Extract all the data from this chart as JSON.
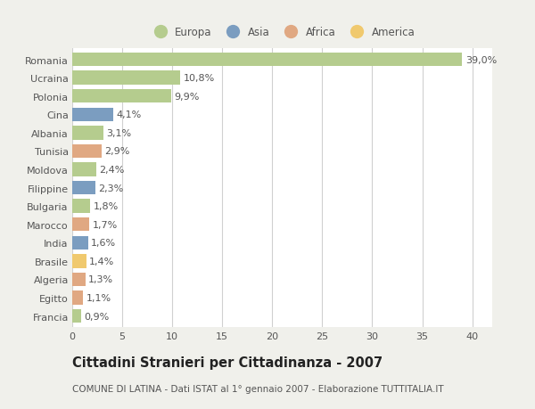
{
  "countries": [
    "Romania",
    "Ucraina",
    "Polonia",
    "Cina",
    "Albania",
    "Tunisia",
    "Moldova",
    "Filippine",
    "Bulgaria",
    "Marocco",
    "India",
    "Brasile",
    "Algeria",
    "Egitto",
    "Francia"
  ],
  "values": [
    39.0,
    10.8,
    9.9,
    4.1,
    3.1,
    2.9,
    2.4,
    2.3,
    1.8,
    1.7,
    1.6,
    1.4,
    1.3,
    1.1,
    0.9
  ],
  "continents": [
    "Europa",
    "Europa",
    "Europa",
    "Asia",
    "Europa",
    "Africa",
    "Europa",
    "Asia",
    "Europa",
    "Africa",
    "Asia",
    "America",
    "Africa",
    "Africa",
    "Europa"
  ],
  "continent_colors": {
    "Europa": "#b5cc8e",
    "Asia": "#7b9dc0",
    "Africa": "#e0a882",
    "America": "#f0c96e"
  },
  "labels": [
    "39,0%",
    "10,8%",
    "9,9%",
    "4,1%",
    "3,1%",
    "2,9%",
    "2,4%",
    "2,3%",
    "1,8%",
    "1,7%",
    "1,6%",
    "1,4%",
    "1,3%",
    "1,1%",
    "0,9%"
  ],
  "xlim": [
    0,
    42
  ],
  "xticks": [
    0,
    5,
    10,
    15,
    20,
    25,
    30,
    35,
    40
  ],
  "title": "Cittadini Stranieri per Cittadinanza - 2007",
  "subtitle": "COMUNE DI LATINA - Dati ISTAT al 1° gennaio 2007 - Elaborazione TUTTITALIA.IT",
  "bg_color": "#f0f0eb",
  "plot_bg_color": "#ffffff",
  "legend_labels": [
    "Europa",
    "Asia",
    "Africa",
    "America"
  ],
  "grid_color": "#d0d0d0",
  "text_color": "#555555",
  "label_fontsize": 8,
  "tick_fontsize": 8,
  "title_fontsize": 10.5,
  "subtitle_fontsize": 7.5,
  "bar_height": 0.75
}
